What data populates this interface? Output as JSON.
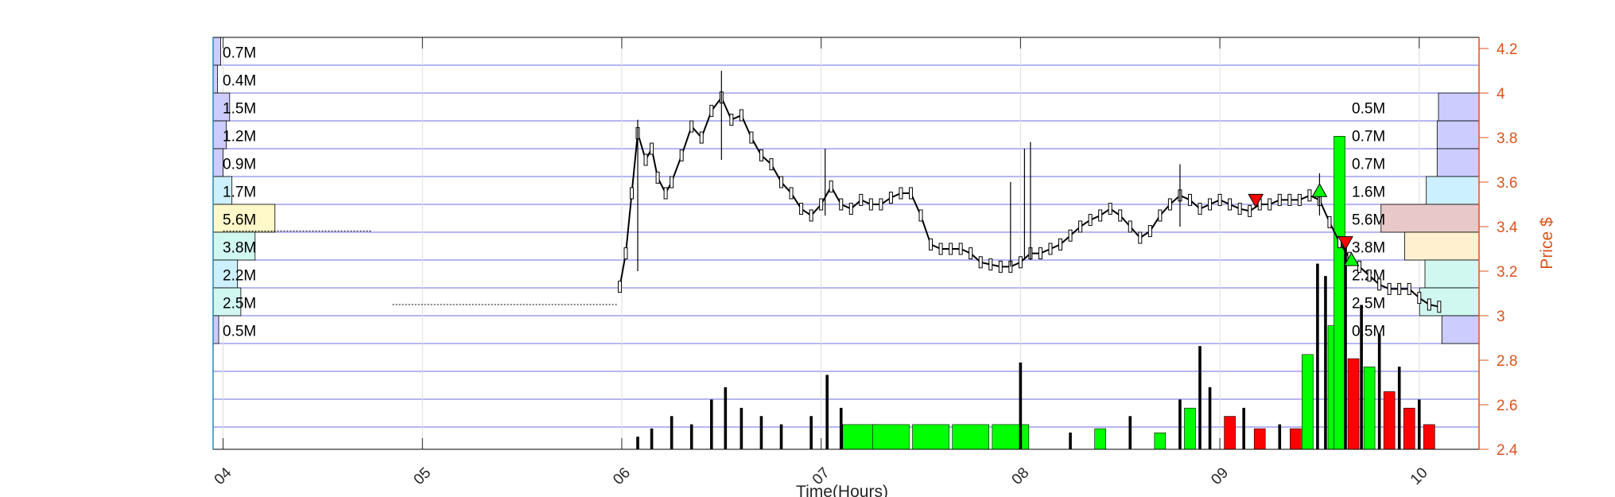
{
  "chart_data": {
    "type": "candlestick",
    "xlabel": "Time(Hours)",
    "ylabel": "Price $",
    "x_ticks": [
      "04",
      "05",
      "06",
      "07",
      "08",
      "09",
      "10"
    ],
    "x_tick_values": [
      4,
      5,
      6,
      7,
      8,
      9,
      10
    ],
    "xlim": [
      3.95,
      10.3
    ],
    "ylim": [
      2.4,
      4.25
    ],
    "y_ticks": [
      2.4,
      2.6,
      2.8,
      3.0,
      3.2,
      3.4,
      3.6,
      3.8,
      4.0,
      4.2
    ],
    "y_tick_labels": [
      "2.4",
      "2.6",
      "2.8",
      "3",
      "3.2",
      "3.4",
      "3.6",
      "3.8",
      "4",
      "4.2"
    ],
    "grid": true,
    "colors": {
      "axis_right": "#d95319",
      "grid": "#3c3cdc",
      "up_volume": "#00ff00",
      "down_volume": "#ff0000",
      "buy_marker": "#00ff00",
      "sell_marker": "#ff0000",
      "profile_blue": "#ccccff",
      "profile_cyan": "#ccf0ff",
      "profile_teal": "#d0f8f0",
      "profile_yellow": "#fff8c8",
      "profile_orange": "#fff0d0",
      "profile_rose": "#e8c8c8"
    },
    "price_path": [
      [
        5.99,
        3.13
      ],
      [
        6.02,
        3.28
      ],
      [
        6.05,
        3.55
      ],
      [
        6.08,
        3.82
      ],
      [
        6.12,
        3.7
      ],
      [
        6.15,
        3.75
      ],
      [
        6.18,
        3.62
      ],
      [
        6.22,
        3.55
      ],
      [
        6.25,
        3.6
      ],
      [
        6.3,
        3.72
      ],
      [
        6.35,
        3.85
      ],
      [
        6.4,
        3.8
      ],
      [
        6.45,
        3.92
      ],
      [
        6.5,
        3.98
      ],
      [
        6.55,
        3.88
      ],
      [
        6.6,
        3.9
      ],
      [
        6.65,
        3.8
      ],
      [
        6.7,
        3.72
      ],
      [
        6.75,
        3.68
      ],
      [
        6.8,
        3.6
      ],
      [
        6.85,
        3.55
      ],
      [
        6.9,
        3.48
      ],
      [
        6.95,
        3.45
      ],
      [
        7.0,
        3.5
      ],
      [
        7.05,
        3.58
      ],
      [
        7.1,
        3.5
      ],
      [
        7.15,
        3.48
      ],
      [
        7.2,
        3.52
      ],
      [
        7.25,
        3.5
      ],
      [
        7.3,
        3.5
      ],
      [
        7.35,
        3.53
      ],
      [
        7.4,
        3.55
      ],
      [
        7.45,
        3.55
      ],
      [
        7.5,
        3.45
      ],
      [
        7.55,
        3.32
      ],
      [
        7.6,
        3.3
      ],
      [
        7.65,
        3.3
      ],
      [
        7.7,
        3.3
      ],
      [
        7.75,
        3.28
      ],
      [
        7.8,
        3.24
      ],
      [
        7.85,
        3.23
      ],
      [
        7.9,
        3.22
      ],
      [
        7.95,
        3.22
      ],
      [
        8.0,
        3.24
      ],
      [
        8.05,
        3.28
      ],
      [
        8.1,
        3.28
      ],
      [
        8.15,
        3.3
      ],
      [
        8.2,
        3.32
      ],
      [
        8.25,
        3.36
      ],
      [
        8.3,
        3.4
      ],
      [
        8.35,
        3.43
      ],
      [
        8.4,
        3.45
      ],
      [
        8.45,
        3.48
      ],
      [
        8.5,
        3.45
      ],
      [
        8.55,
        3.4
      ],
      [
        8.6,
        3.35
      ],
      [
        8.65,
        3.38
      ],
      [
        8.7,
        3.45
      ],
      [
        8.75,
        3.5
      ],
      [
        8.8,
        3.54
      ],
      [
        8.85,
        3.52
      ],
      [
        8.9,
        3.48
      ],
      [
        8.95,
        3.5
      ],
      [
        9.0,
        3.52
      ],
      [
        9.05,
        3.5
      ],
      [
        9.1,
        3.48
      ],
      [
        9.15,
        3.47
      ],
      [
        9.2,
        3.5
      ],
      [
        9.25,
        3.5
      ],
      [
        9.3,
        3.52
      ],
      [
        9.35,
        3.52
      ],
      [
        9.4,
        3.52
      ],
      [
        9.45,
        3.54
      ],
      [
        9.5,
        3.52
      ],
      [
        9.55,
        3.42
      ],
      [
        9.6,
        3.33
      ],
      [
        9.65,
        3.26
      ],
      [
        9.7,
        3.22
      ],
      [
        9.75,
        3.18
      ],
      [
        9.8,
        3.14
      ],
      [
        9.85,
        3.12
      ],
      [
        9.9,
        3.12
      ],
      [
        9.95,
        3.12
      ],
      [
        10.0,
        3.08
      ],
      [
        10.05,
        3.05
      ],
      [
        10.1,
        3.04
      ]
    ],
    "price_spikes": [
      [
        6.08,
        3.2,
        3.88
      ],
      [
        6.5,
        3.7,
        4.1
      ],
      [
        7.02,
        3.45,
        3.75
      ],
      [
        7.95,
        3.22,
        3.6
      ],
      [
        8.02,
        3.25,
        3.75
      ],
      [
        8.05,
        3.25,
        3.78
      ],
      [
        8.8,
        3.4,
        3.68
      ],
      [
        9.5,
        3.45,
        3.64
      ]
    ],
    "premarket_level": {
      "x": [
        4.0,
        4.75
      ],
      "y": 3.38
    },
    "flat_level": {
      "x": [
        4.85,
        5.98
      ],
      "y": 3.05
    },
    "markers": {
      "sell": [
        {
          "x": 9.18,
          "y": 3.52
        },
        {
          "x": 9.63,
          "y": 3.33
        }
      ],
      "buy": [
        {
          "x": 9.5,
          "y": 3.56
        },
        {
          "x": 9.66,
          "y": 3.25
        }
      ]
    },
    "volume_profile_left": [
      {
        "price": 4.25,
        "label": "0.7M",
        "width": 0.3
      },
      {
        "price": 4.125,
        "label": "0.4M",
        "width": 0.17
      },
      {
        "price": 4.0,
        "label": "1.5M",
        "width": 0.65
      },
      {
        "price": 3.875,
        "label": "1.2M",
        "width": 0.52
      },
      {
        "price": 3.75,
        "label": "0.9M",
        "width": 0.39
      },
      {
        "price": 3.625,
        "label": "1.7M",
        "width": 0.74
      },
      {
        "price": 3.5,
        "label": "5.6M",
        "width": 2.43
      },
      {
        "price": 3.375,
        "label": "3.8M",
        "width": 1.65
      },
      {
        "price": 3.25,
        "label": "2.2M",
        "width": 0.96
      },
      {
        "price": 3.125,
        "label": "2.5M",
        "width": 1.09
      },
      {
        "price": 3.0,
        "label": "0.5M",
        "width": 0.22
      }
    ],
    "volume_profile_right": [
      {
        "price": 4.0,
        "label": "0.5M",
        "width": 0.6
      },
      {
        "price": 3.875,
        "label": "0.7M",
        "width": 0.62
      },
      {
        "price": 3.75,
        "label": "0.7M",
        "width": 0.62
      },
      {
        "price": 3.625,
        "label": "1.6M",
        "width": 0.78
      },
      {
        "price": 3.5,
        "label": "5.6M",
        "width": 1.45
      },
      {
        "price": 3.375,
        "label": "3.8M",
        "width": 1.1
      },
      {
        "price": 3.25,
        "label": "2.2M",
        "width": 0.8
      },
      {
        "price": 3.125,
        "label": "2.5M",
        "width": 0.88
      },
      {
        "price": 3.0,
        "label": "0.5M",
        "width": 0.55
      }
    ],
    "volume_bars": [
      [
        6.08,
        0.03,
        "n"
      ],
      [
        6.15,
        0.05,
        "n"
      ],
      [
        6.25,
        0.08,
        "n"
      ],
      [
        6.35,
        0.06,
        "n"
      ],
      [
        6.45,
        0.12,
        "n"
      ],
      [
        6.52,
        0.15,
        "n"
      ],
      [
        6.6,
        0.1,
        "n"
      ],
      [
        6.7,
        0.08,
        "n"
      ],
      [
        6.8,
        0.06,
        "n"
      ],
      [
        6.95,
        0.08,
        "n"
      ],
      [
        7.03,
        0.18,
        "n"
      ],
      [
        7.1,
        0.1,
        "n"
      ],
      [
        7.2,
        0.06,
        "u"
      ],
      [
        7.35,
        0.06,
        "u"
      ],
      [
        7.55,
        0.06,
        "u"
      ],
      [
        7.75,
        0.06,
        "u"
      ],
      [
        7.95,
        0.06,
        "u"
      ],
      [
        8.0,
        0.21,
        "n"
      ],
      [
        8.25,
        0.04,
        "n"
      ],
      [
        8.4,
        0.05,
        "u"
      ],
      [
        8.55,
        0.08,
        "n"
      ],
      [
        8.7,
        0.04,
        "u"
      ],
      [
        8.8,
        0.12,
        "n"
      ],
      [
        8.85,
        0.1,
        "u"
      ],
      [
        8.9,
        0.25,
        "n"
      ],
      [
        8.95,
        0.15,
        "n"
      ],
      [
        9.05,
        0.08,
        "d"
      ],
      [
        9.12,
        0.1,
        "n"
      ],
      [
        9.2,
        0.05,
        "d"
      ],
      [
        9.3,
        0.06,
        "n"
      ],
      [
        9.38,
        0.05,
        "d"
      ],
      [
        9.44,
        0.23,
        "u"
      ],
      [
        9.49,
        0.45,
        "n"
      ],
      [
        9.53,
        0.42,
        "n"
      ],
      [
        9.57,
        0.3,
        "u"
      ],
      [
        9.6,
        0.76,
        "u"
      ],
      [
        9.63,
        0.5,
        "n"
      ],
      [
        9.67,
        0.22,
        "d"
      ],
      [
        9.71,
        0.35,
        "n"
      ],
      [
        9.75,
        0.2,
        "u"
      ],
      [
        9.8,
        0.28,
        "n"
      ],
      [
        9.85,
        0.14,
        "d"
      ],
      [
        9.9,
        0.2,
        "n"
      ],
      [
        9.95,
        0.1,
        "d"
      ],
      [
        10.0,
        0.12,
        "n"
      ],
      [
        10.05,
        0.06,
        "d"
      ]
    ]
  }
}
